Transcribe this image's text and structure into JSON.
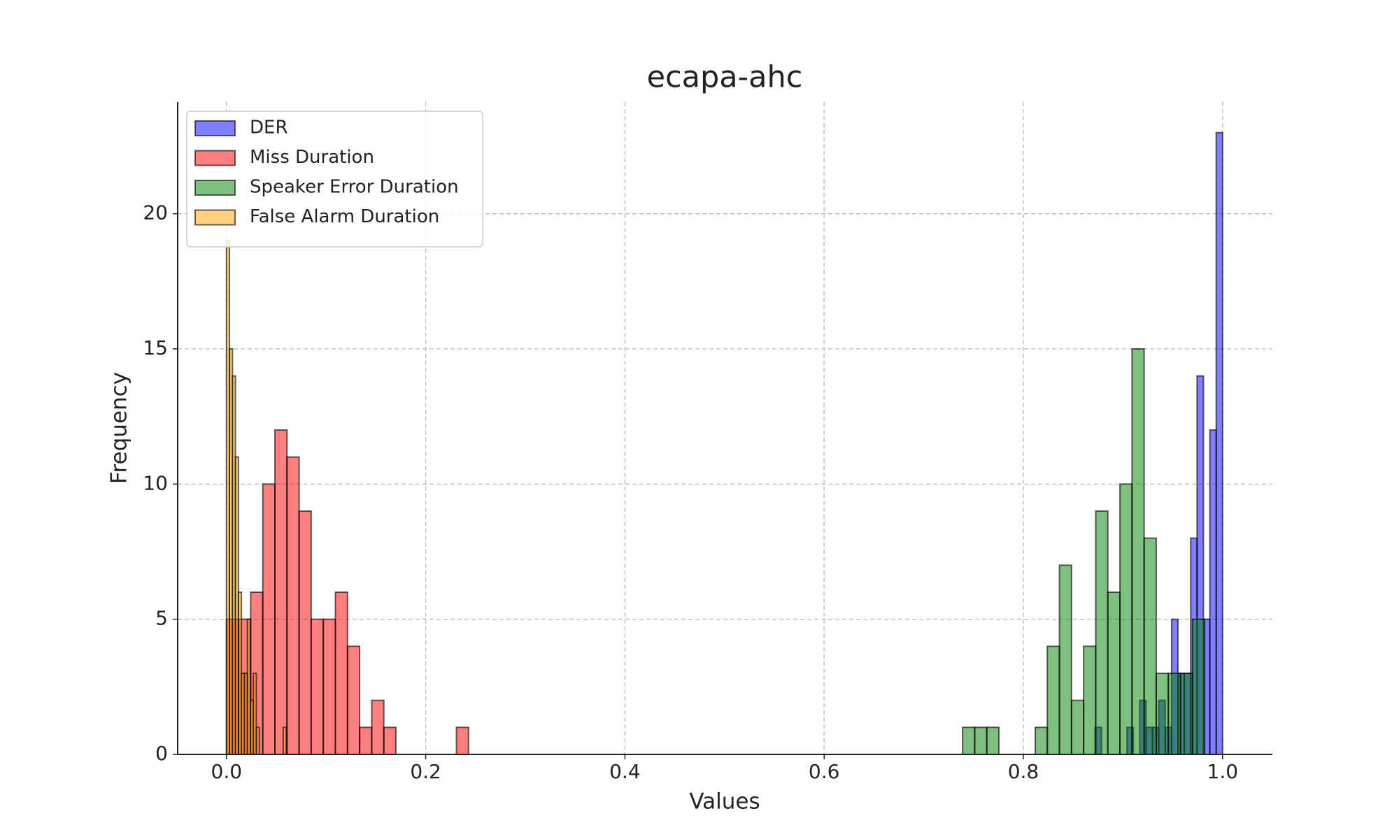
{
  "chart_data": {
    "type": "histogram",
    "title": "ecapa-ahc",
    "xlabel": "Values",
    "ylabel": "Frequency",
    "xlim": [
      -0.049,
      1.05
    ],
    "ylim": [
      0,
      24.13
    ],
    "xticks": [
      {
        "value": 0,
        "label": "0.0"
      },
      0.2,
      0.4,
      0.6,
      0.8,
      {
        "value": 1,
        "label": "1.0"
      }
    ],
    "yticks": [
      0,
      5,
      10,
      15,
      20
    ],
    "grid": true,
    "legend": "upper left",
    "alpha": 0.5,
    "edgecolor": "#000000",
    "series": [
      {
        "name": "DER",
        "color": "#0000ff",
        "bins": [
          0.872,
          0.8784,
          0.8848,
          0.8912,
          0.8976,
          0.904,
          0.9104,
          0.9168,
          0.9232,
          0.9296,
          0.936,
          0.9424,
          0.9488,
          0.9552,
          0.9616,
          0.968,
          0.9744,
          0.9808,
          0.9872,
          0.9936,
          1.0
        ],
        "values": [
          1,
          0,
          0,
          0,
          0,
          1,
          0,
          2,
          1,
          1,
          2,
          1,
          5,
          3,
          3,
          8,
          14,
          5,
          12,
          23
        ]
      },
      {
        "name": "Miss Duration",
        "color": "#ff0000",
        "bins": [
          0,
          0.01215,
          0.0243,
          0.03645,
          0.0486,
          0.06075,
          0.0729,
          0.08505,
          0.0972,
          0.10935,
          0.1215,
          0.13365,
          0.1458,
          0.15795,
          0.1701,
          0.18225,
          0.1944,
          0.20655,
          0.2187,
          0.23085,
          0.243
        ],
        "values": [
          5,
          5,
          6,
          10,
          12,
          11,
          9,
          5,
          5,
          6,
          4,
          1,
          2,
          1,
          0,
          0,
          0,
          0,
          0,
          1
        ]
      },
      {
        "name": "Speaker Error Duration",
        "color": "#008000",
        "bins": [
          0.739,
          0.75115,
          0.7633,
          0.77545,
          0.7876,
          0.79975,
          0.8119,
          0.82405,
          0.8362,
          0.84835,
          0.8605,
          0.87265,
          0.8848,
          0.89695,
          0.9091,
          0.92125,
          0.9334,
          0.94555,
          0.9577,
          0.96985,
          0.982
        ],
        "values": [
          1,
          1,
          1,
          0,
          0,
          0,
          1,
          4,
          7,
          2,
          4,
          9,
          6,
          10,
          15,
          8,
          3,
          3,
          3,
          5
        ]
      },
      {
        "name": "False Alarm Duration",
        "color": "#ffa500",
        "bins": [
          0,
          0.003,
          0.006,
          0.009,
          0.012,
          0.015,
          0.018,
          0.021,
          0.024,
          0.027,
          0.03,
          0.033,
          0.036,
          0.039,
          0.042,
          0.045,
          0.048,
          0.051,
          0.054,
          0.057,
          0.06
        ],
        "values": [
          19,
          15,
          14,
          11,
          6,
          3,
          3,
          5,
          2,
          3,
          1,
          0,
          0,
          0,
          0,
          0,
          0,
          0,
          0,
          1
        ]
      }
    ]
  }
}
